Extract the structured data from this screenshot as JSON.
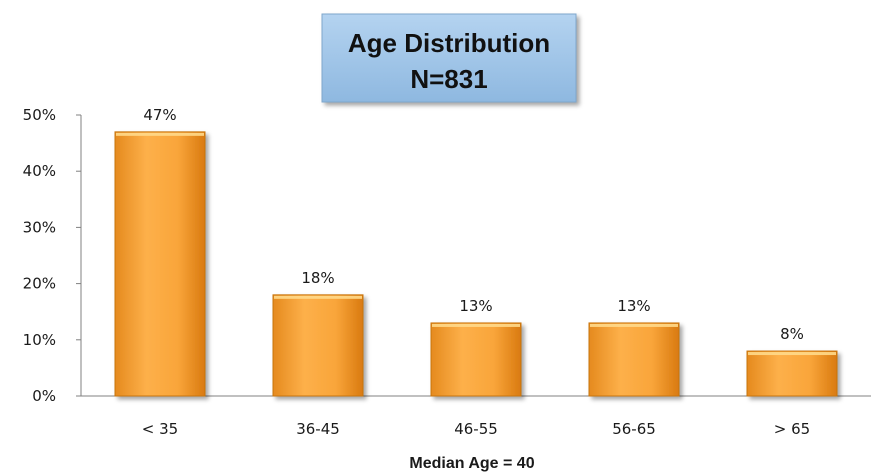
{
  "chart_data": {
    "type": "bar",
    "title": "Age Distribution",
    "subtitle": "N=831",
    "xlabel": "Median Age = 40",
    "ylabel": "",
    "categories": [
      "< 35",
      "36-45",
      "46-55",
      "56-65",
      "> 65"
    ],
    "values": [
      47,
      18,
      13,
      13,
      8
    ],
    "data_labels": [
      "47%",
      "18%",
      "13%",
      "13%",
      "8%"
    ],
    "ylim": [
      0,
      50
    ],
    "yticks": [
      0,
      10,
      20,
      30,
      40,
      50
    ],
    "ytick_labels": [
      "0%",
      "10%",
      "20%",
      "30%",
      "40%",
      "50%"
    ],
    "grid": false,
    "legend": "none"
  },
  "colors": {
    "bar_fill": "#F9A53A",
    "bar_light": "#FFCB6E",
    "bar_dark": "#E07F12",
    "title_box": "#9DC3E6",
    "axis": "#808080"
  }
}
